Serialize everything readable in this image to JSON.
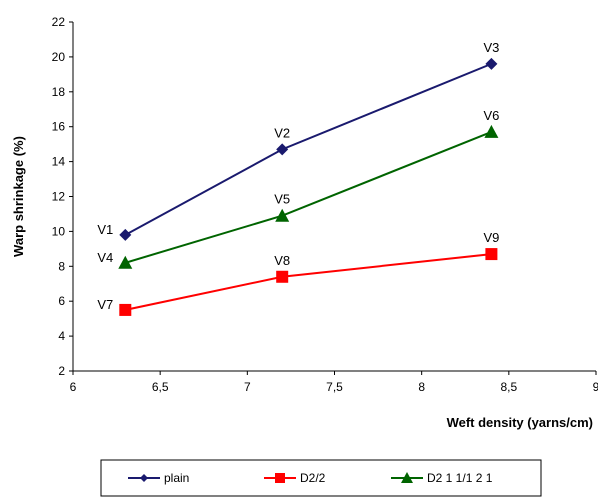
{
  "chart_data": {
    "type": "line",
    "xlabel": "Weft density (yarns/cm)",
    "ylabel": "Warp shrinkage (%)",
    "xlim": [
      6,
      9
    ],
    "ylim": [
      2,
      22
    ],
    "x_ticks": [
      6,
      6.5,
      7,
      7.5,
      8,
      8.5,
      9
    ],
    "x_tick_labels": [
      "6",
      "6,5",
      "7",
      "7,5",
      "8",
      "8,5",
      "9"
    ],
    "y_ticks": [
      2,
      4,
      6,
      8,
      10,
      12,
      14,
      16,
      18,
      20,
      22
    ],
    "y_tick_labels": [
      "2",
      "4",
      "6",
      "8",
      "10",
      "12",
      "14",
      "16",
      "18",
      "20",
      "22"
    ],
    "grid": false,
    "legend_position": "bottom",
    "series": [
      {
        "name": "plain",
        "color": "#1a1a6e",
        "marker": "diamond",
        "points": [
          {
            "x": 6.3,
            "y": 9.8,
            "label": "V1"
          },
          {
            "x": 7.2,
            "y": 14.7,
            "label": "V2"
          },
          {
            "x": 8.4,
            "y": 19.6,
            "label": "V3"
          }
        ]
      },
      {
        "name": "D2/2",
        "color": "#ff0000",
        "marker": "square",
        "points": [
          {
            "x": 6.3,
            "y": 5.5,
            "label": "V7"
          },
          {
            "x": 7.2,
            "y": 7.4,
            "label": "V8"
          },
          {
            "x": 8.4,
            "y": 8.7,
            "label": "V9"
          }
        ]
      },
      {
        "name": "D2 1 1/1 2 1",
        "color": "#006400",
        "marker": "triangle",
        "points": [
          {
            "x": 6.3,
            "y": 8.2,
            "label": "V4"
          },
          {
            "x": 7.2,
            "y": 10.9,
            "label": "V5"
          },
          {
            "x": 8.4,
            "y": 15.7,
            "label": "V6"
          }
        ]
      }
    ]
  }
}
